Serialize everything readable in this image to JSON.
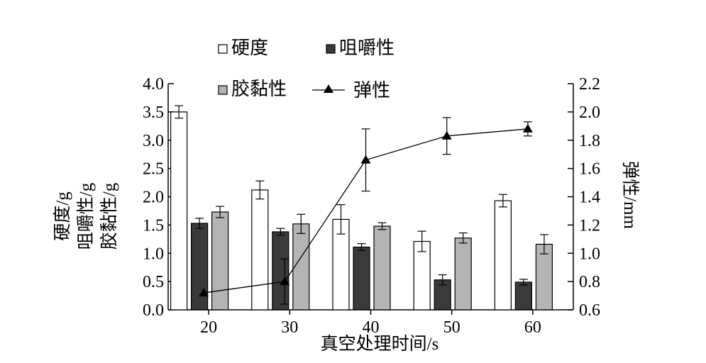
{
  "chart_data": {
    "type": "bar",
    "categories": [
      "20",
      "30",
      "40",
      "50",
      "60"
    ],
    "xlabel": "真空处理时间/s",
    "ylabel_left": [
      "硬度/g",
      "咀嚼性/g",
      "胶黏性/g"
    ],
    "ylabel_right": "弹性/mm",
    "ylim_left": [
      0.0,
      4.0
    ],
    "ylim_right": [
      0.6,
      2.2
    ],
    "yticks_left": [
      "0.0",
      "0.5",
      "1.0",
      "1.5",
      "2.0",
      "2.5",
      "3.0",
      "3.5",
      "4.0"
    ],
    "yticks_right": [
      "0.6",
      "0.8",
      "1.0",
      "1.2",
      "1.4",
      "1.6",
      "1.8",
      "2.0",
      "2.2"
    ],
    "grid": false,
    "legend_position": "top",
    "series": [
      {
        "name": "硬度",
        "kind": "bar",
        "axis": "left",
        "color": "#ffffff",
        "values": [
          3.5,
          2.12,
          1.6,
          1.21,
          1.93
        ],
        "errors": [
          0.11,
          0.16,
          0.26,
          0.18,
          0.11
        ]
      },
      {
        "name": "咀嚼性",
        "kind": "bar",
        "axis": "left",
        "color": "#3a3a3a",
        "values": [
          1.53,
          1.38,
          1.11,
          0.53,
          0.49
        ],
        "errors": [
          0.09,
          0.06,
          0.06,
          0.09,
          0.05
        ]
      },
      {
        "name": "胶黏性",
        "kind": "bar",
        "axis": "left",
        "color": "#b4b4b4",
        "values": [
          1.73,
          1.52,
          1.48,
          1.27,
          1.16
        ],
        "errors": [
          0.1,
          0.17,
          0.06,
          0.09,
          0.17
        ]
      },
      {
        "name": "弹性",
        "kind": "line",
        "marker": "triangle",
        "axis": "right",
        "color": "#000000",
        "values": [
          0.72,
          0.8,
          1.66,
          1.83,
          1.88
        ],
        "errors": [
          0.0,
          0.16,
          0.22,
          0.13,
          0.05
        ]
      }
    ]
  }
}
